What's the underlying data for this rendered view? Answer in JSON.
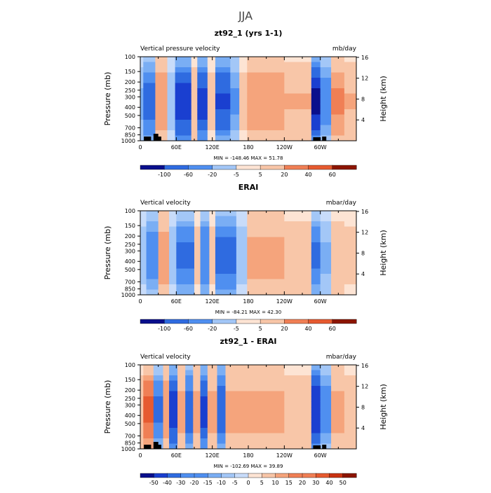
{
  "figure": {
    "title": "JJA"
  },
  "chart_data": [
    {
      "type": "heatmap",
      "title": "zt92_1 (yrs 1-1)",
      "left_label": "Vertical pressure velocity",
      "right_label": "mb/day",
      "xlabel": "",
      "ylabel": "Pressure (mb)",
      "y2label": "Height (km)",
      "x_tick_labels": [
        "0",
        "60E",
        "120E",
        "180",
        "120W",
        "60W"
      ],
      "y_tick_labels": [
        "100",
        "150",
        "200",
        "250",
        "300",
        "400",
        "500",
        "700",
        "850",
        "1000"
      ],
      "y2_tick_labels": [
        "16",
        "12",
        "8",
        "4"
      ],
      "min_max": "MIN = -148.46   MAX =   51.78",
      "colorbar_labels": [
        "-100",
        "-60",
        "-20",
        "-5",
        "5",
        "20",
        "40",
        "60"
      ],
      "bands": [
        {
          "lon": [
            0,
            5
          ],
          "value": -10
        },
        {
          "lon": [
            5,
            25
          ],
          "value": -45
        },
        {
          "lon": [
            25,
            45
          ],
          "value": 30
        },
        {
          "lon": [
            45,
            58
          ],
          "value": -5
        },
        {
          "lon": [
            58,
            85
          ],
          "value": -90
        },
        {
          "lon": [
            85,
            95
          ],
          "value": 10
        },
        {
          "lon": [
            95,
            112
          ],
          "value": -80
        },
        {
          "lon": [
            112,
            125
          ],
          "value": 5
        },
        {
          "lon": [
            125,
            150
          ],
          "value": -70
        },
        {
          "lon": [
            150,
            165
          ],
          "value": -20
        },
        {
          "lon": [
            165,
            178
          ],
          "value": 5
        },
        {
          "lon": [
            178,
            240
          ],
          "value": 30
        },
        {
          "lon": [
            240,
            285
          ],
          "value": 15
        },
        {
          "lon": [
            285,
            300
          ],
          "value": -120
        },
        {
          "lon": [
            300,
            318
          ],
          "value": -30
        },
        {
          "lon": [
            318,
            340
          ],
          "value": 35
        },
        {
          "lon": [
            340,
            360
          ],
          "value": 15
        }
      ]
    },
    {
      "type": "heatmap",
      "title": "ERAI",
      "left_label": "Vertical velocity",
      "right_label": "mbar/day",
      "xlabel": "",
      "ylabel": "Pressure (mb)",
      "y2label": "Height (km)",
      "x_tick_labels": [
        "0",
        "60E",
        "120E",
        "180",
        "120W",
        "60W"
      ],
      "y_tick_labels": [
        "100",
        "150",
        "200",
        "250",
        "300",
        "400",
        "500",
        "700",
        "850",
        "1000"
      ],
      "y2_tick_labels": [
        "16",
        "12",
        "8",
        "4"
      ],
      "min_max": "MIN =  -84.21   MAX =   42.30",
      "colorbar_labels": [
        "-100",
        "-60",
        "-20",
        "-5",
        "5",
        "20",
        "40",
        "60"
      ],
      "bands": [
        {
          "lon": [
            0,
            10
          ],
          "value": -5
        },
        {
          "lon": [
            10,
            30
          ],
          "value": -30
        },
        {
          "lon": [
            30,
            48
          ],
          "value": 25
        },
        {
          "lon": [
            48,
            60
          ],
          "value": -5
        },
        {
          "lon": [
            60,
            90
          ],
          "value": -40
        },
        {
          "lon": [
            90,
            100
          ],
          "value": 5
        },
        {
          "lon": [
            100,
            115
          ],
          "value": -35
        },
        {
          "lon": [
            115,
            125
          ],
          "value": 5
        },
        {
          "lon": [
            125,
            160
          ],
          "value": -45
        },
        {
          "lon": [
            160,
            178
          ],
          "value": -5
        },
        {
          "lon": [
            178,
            240
          ],
          "value": 20
        },
        {
          "lon": [
            240,
            285
          ],
          "value": 10
        },
        {
          "lon": [
            285,
            300
          ],
          "value": -40
        },
        {
          "lon": [
            300,
            318
          ],
          "value": -10
        },
        {
          "lon": [
            318,
            340
          ],
          "value": 10
        },
        {
          "lon": [
            340,
            360
          ],
          "value": 5
        }
      ]
    },
    {
      "type": "heatmap",
      "title": "zt92_1 - ERAI",
      "left_label": "Vertical velocity",
      "right_label": "mbar/day",
      "xlabel": "",
      "ylabel": "Pressure (mb)",
      "y2label": "Height (km)",
      "x_tick_labels": [
        "0",
        "60E",
        "120E",
        "180",
        "120W",
        "60W"
      ],
      "y_tick_labels": [
        "100",
        "150",
        "200",
        "250",
        "300",
        "400",
        "500",
        "700",
        "850",
        "1000"
      ],
      "y2_tick_labels": [
        "16",
        "12",
        "8",
        "4"
      ],
      "min_max": "MIN = -102.69   MAX =   39.89",
      "colorbar_labels": [
        "-50",
        "-40",
        "-30",
        "-20",
        "-15",
        "-10",
        "-5",
        "0",
        "5",
        "10",
        "15",
        "20",
        "30",
        "40",
        "50"
      ],
      "bands": [
        {
          "lon": [
            0,
            5
          ],
          "value": 5
        },
        {
          "lon": [
            5,
            22
          ],
          "value": 30
        },
        {
          "lon": [
            22,
            38
          ],
          "value": -20
        },
        {
          "lon": [
            38,
            48
          ],
          "value": 15
        },
        {
          "lon": [
            48,
            62
          ],
          "value": -45
        },
        {
          "lon": [
            62,
            75
          ],
          "value": 10
        },
        {
          "lon": [
            75,
            88
          ],
          "value": -25
        },
        {
          "lon": [
            88,
            100
          ],
          "value": 10
        },
        {
          "lon": [
            100,
            112
          ],
          "value": -40
        },
        {
          "lon": [
            112,
            128
          ],
          "value": 10
        },
        {
          "lon": [
            128,
            142
          ],
          "value": -30
        },
        {
          "lon": [
            142,
            178
          ],
          "value": 10
        },
        {
          "lon": [
            178,
            240
          ],
          "value": 10
        },
        {
          "lon": [
            240,
            285
          ],
          "value": 5
        },
        {
          "lon": [
            285,
            300
          ],
          "value": -50
        },
        {
          "lon": [
            300,
            318
          ],
          "value": -15
        },
        {
          "lon": [
            318,
            340
          ],
          "value": 10
        },
        {
          "lon": [
            340,
            360
          ],
          "value": 5
        }
      ]
    }
  ],
  "colors": {
    "diverging": [
      "#0a0f8c",
      "#1a3fd0",
      "#2f6be0",
      "#4f8ff0",
      "#7aaef4",
      "#a3c7f7",
      "#c8dcfa",
      "#fde4d4",
      "#f8c6a8",
      "#f5a47c",
      "#f07f55",
      "#e65a30",
      "#c93312",
      "#8c1500"
    ]
  }
}
